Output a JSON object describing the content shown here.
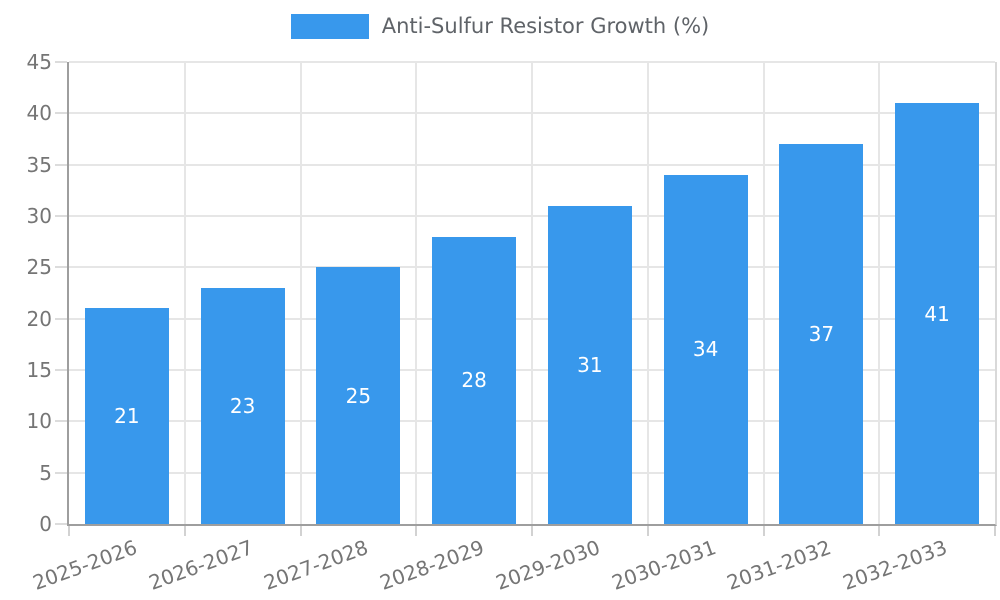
{
  "legend": {
    "label": "Anti-Sulfur Resistor Growth (%)"
  },
  "colors": {
    "bar": "#3898ec",
    "grid": "#e6e6e6",
    "axis_border": "#9e9e9e",
    "right_border": "#d9d9d9",
    "tick_label": "#757575",
    "legend_text": "#5f6368",
    "bar_value_label": "#ffffff",
    "background": "#ffffff"
  },
  "chart_data": {
    "type": "bar",
    "title": "Anti-Sulfur Resistor Growth (%)",
    "series": [
      {
        "name": "Anti-Sulfur Resistor Growth (%)",
        "values": [
          21,
          23,
          25,
          28,
          31,
          34,
          37,
          41
        ]
      }
    ],
    "categories": [
      "2025-2026",
      "2026-2027",
      "2027-2028",
      "2028-2029",
      "2029-2030",
      "2030-2031",
      "2031-2032",
      "2032-2033"
    ],
    "xlabel": "",
    "ylabel": "",
    "ylim": [
      0,
      45
    ],
    "y_tick_step": 5,
    "y_tick_labels": [
      "0",
      "5",
      "10",
      "15",
      "20",
      "25",
      "30",
      "35",
      "40",
      "45"
    ],
    "grid": true,
    "legend_position": "top",
    "value_labels_shown": true,
    "x_label_rotation_deg": -20
  }
}
